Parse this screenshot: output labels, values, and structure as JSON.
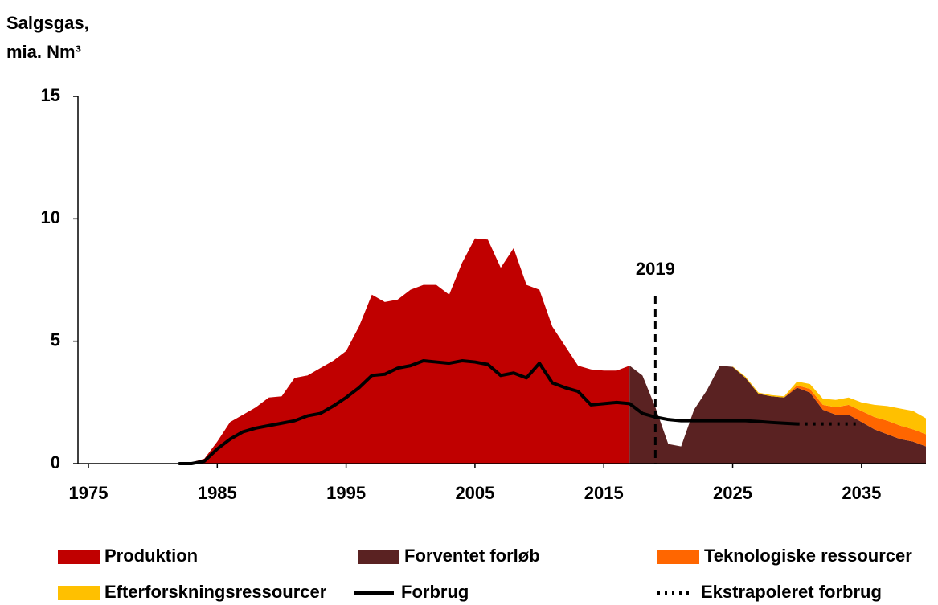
{
  "chart_data": {
    "type": "area",
    "y_label": [
      "Salgsgas,",
      "mia. Nm³"
    ],
    "x": [
      1982,
      1983,
      1984,
      1985,
      1986,
      1987,
      1988,
      1989,
      1990,
      1991,
      1992,
      1993,
      1994,
      1995,
      1996,
      1997,
      1998,
      1999,
      2000,
      2001,
      2002,
      2003,
      2004,
      2005,
      2006,
      2007,
      2008,
      2009,
      2010,
      2011,
      2012,
      2013,
      2014,
      2015,
      2016,
      2017,
      2018,
      2019,
      2020,
      2021,
      2022,
      2023,
      2024,
      2025,
      2026,
      2027,
      2028,
      2029,
      2030,
      2031,
      2032,
      2033,
      2034,
      2035,
      2036,
      2037,
      2038,
      2039,
      2040
    ],
    "xlim": [
      1975,
      2040
    ],
    "xticks": [
      1975,
      1985,
      1995,
      2005,
      2015,
      2025,
      2035
    ],
    "ylim": [
      0,
      15
    ],
    "yticks": [
      0,
      5,
      10,
      15
    ],
    "annotation": {
      "text": "2019",
      "x": 2019
    },
    "series": [
      {
        "name": "Produktion",
        "color": "#c00000",
        "kind": "area",
        "stacked": false,
        "values": [
          0,
          0.05,
          0.2,
          0.9,
          1.7,
          2.0,
          2.3,
          2.7,
          2.75,
          3.5,
          3.6,
          3.9,
          4.2,
          4.6,
          5.6,
          6.9,
          6.6,
          6.7,
          7.1,
          7.3,
          7.3,
          6.9,
          8.2,
          9.2,
          9.15,
          8.0,
          8.8,
          7.3,
          7.1,
          5.6,
          4.8,
          4.0,
          3.85,
          3.8,
          3.8,
          4.0,
          null,
          null,
          null,
          null,
          null,
          null,
          null,
          null,
          null,
          null,
          null,
          null,
          null,
          null,
          null,
          null,
          null,
          null,
          null,
          null,
          null,
          null,
          null
        ]
      },
      {
        "name": "Forventet forløb",
        "color": "#5a2222",
        "kind": "area",
        "stacked": true,
        "values": [
          null,
          null,
          null,
          null,
          null,
          null,
          null,
          null,
          null,
          null,
          null,
          null,
          null,
          null,
          null,
          null,
          null,
          null,
          null,
          null,
          null,
          null,
          null,
          null,
          null,
          null,
          null,
          null,
          null,
          null,
          null,
          null,
          null,
          null,
          null,
          4.0,
          3.6,
          2.3,
          0.8,
          0.7,
          2.2,
          3.0,
          4.0,
          3.95,
          3.5,
          2.85,
          2.75,
          2.7,
          3.1,
          2.9,
          2.2,
          2.0,
          2.0,
          1.7,
          1.4,
          1.2,
          1.0,
          0.9,
          0.7
        ]
      },
      {
        "name": "Teknologiske ressourcer",
        "color": "#ff6600",
        "kind": "area",
        "stacked": true,
        "values": [
          null,
          null,
          null,
          null,
          null,
          null,
          null,
          null,
          null,
          null,
          null,
          null,
          null,
          null,
          null,
          null,
          null,
          null,
          null,
          null,
          null,
          null,
          null,
          null,
          null,
          null,
          null,
          null,
          null,
          null,
          null,
          null,
          null,
          null,
          null,
          null,
          null,
          null,
          null,
          null,
          null,
          null,
          null,
          null,
          null,
          null,
          null,
          0,
          0.1,
          0.15,
          0.2,
          0.3,
          0.4,
          0.45,
          0.5,
          0.55,
          0.55,
          0.5,
          0.5
        ]
      },
      {
        "name": "Efterforskningsressourcer",
        "color": "#ffc000",
        "kind": "area",
        "stacked": true,
        "values": [
          null,
          null,
          null,
          null,
          null,
          null,
          null,
          null,
          null,
          null,
          null,
          null,
          null,
          null,
          null,
          null,
          null,
          null,
          null,
          null,
          null,
          null,
          null,
          null,
          null,
          null,
          null,
          null,
          null,
          null,
          null,
          null,
          null,
          null,
          null,
          null,
          null,
          null,
          null,
          null,
          null,
          null,
          null,
          0.02,
          0.05,
          0.05,
          0.05,
          0.05,
          0.15,
          0.2,
          0.25,
          0.3,
          0.3,
          0.35,
          0.5,
          0.6,
          0.7,
          0.75,
          0.65
        ]
      },
      {
        "name": "Forbrug",
        "color": "#000000",
        "kind": "line",
        "style": "solid",
        "values": [
          0,
          0,
          0.1,
          0.6,
          1.0,
          1.3,
          1.45,
          1.55,
          1.65,
          1.75,
          1.95,
          2.05,
          2.35,
          2.7,
          3.1,
          3.6,
          3.65,
          3.9,
          4.0,
          4.2,
          4.15,
          4.1,
          4.2,
          4.15,
          4.05,
          3.6,
          3.7,
          3.5,
          4.1,
          3.3,
          3.1,
          2.95,
          2.4,
          2.45,
          2.5,
          2.45,
          2.05,
          1.9,
          1.8,
          1.75,
          1.75,
          1.75,
          1.75,
          1.75,
          1.75,
          1.72,
          1.68,
          1.65,
          1.62,
          null,
          null,
          null,
          null,
          null,
          null,
          null,
          null,
          null,
          null
        ]
      },
      {
        "name": "Ekstrapoleret forbrug",
        "color": "#000000",
        "kind": "line",
        "style": "dotted",
        "values": [
          null,
          null,
          null,
          null,
          null,
          null,
          null,
          null,
          null,
          null,
          null,
          null,
          null,
          null,
          null,
          null,
          null,
          null,
          null,
          null,
          null,
          null,
          null,
          null,
          null,
          null,
          null,
          null,
          null,
          null,
          null,
          null,
          null,
          null,
          null,
          null,
          null,
          null,
          null,
          null,
          null,
          null,
          null,
          null,
          null,
          null,
          null,
          null,
          1.62,
          1.62,
          1.62,
          1.62,
          1.62,
          1.62,
          null,
          null,
          null,
          null,
          null
        ]
      }
    ]
  }
}
